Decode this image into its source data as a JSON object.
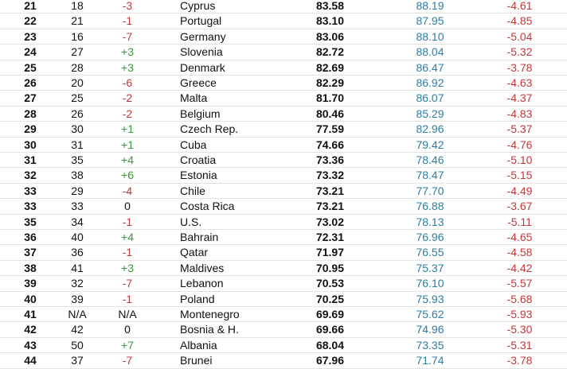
{
  "table": {
    "rows": [
      [
        "21",
        "18",
        "-3",
        "Cyprus",
        "83.58",
        "88.19",
        "-4.61"
      ],
      [
        "22",
        "21",
        "-1",
        "Portugal",
        "83.10",
        "87.95",
        "-4.85"
      ],
      [
        "23",
        "16",
        "-7",
        "Germany",
        "83.06",
        "88.10",
        "-5.04"
      ],
      [
        "24",
        "27",
        "+3",
        "Slovenia",
        "82.72",
        "88.04",
        "-5.32"
      ],
      [
        "25",
        "28",
        "+3",
        "Denmark",
        "82.69",
        "86.47",
        "-3.78"
      ],
      [
        "26",
        "20",
        "-6",
        "Greece",
        "82.29",
        "86.92",
        "-4.63"
      ],
      [
        "27",
        "25",
        "-2",
        "Malta",
        "81.70",
        "86.07",
        "-4.37"
      ],
      [
        "28",
        "26",
        "-2",
        "Belgium",
        "80.46",
        "85.29",
        "-4.83"
      ],
      [
        "29",
        "30",
        "+1",
        "Czech Rep.",
        "77.59",
        "82.96",
        "-5.37"
      ],
      [
        "30",
        "31",
        "+1",
        "Cuba",
        "74.66",
        "79.42",
        "-4.76"
      ],
      [
        "31",
        "35",
        "+4",
        "Croatia",
        "73.36",
        "78.46",
        "-5.10"
      ],
      [
        "32",
        "38",
        "+6",
        "Estonia",
        "73.32",
        "78.47",
        "-5.15"
      ],
      [
        "33",
        "29",
        "-4",
        "Chile",
        "73.21",
        "77.70",
        "-4.49"
      ],
      [
        "33",
        "33",
        "0",
        "Costa Rica",
        "73.21",
        "76.88",
        "-3.67"
      ],
      [
        "35",
        "34",
        "-1",
        "U.S.",
        "73.02",
        "78.13",
        "-5.11"
      ],
      [
        "36",
        "40",
        "+4",
        "Bahrain",
        "72.31",
        "76.96",
        "-4.65"
      ],
      [
        "37",
        "36",
        "-1",
        "Qatar",
        "71.97",
        "76.55",
        "-4.58"
      ],
      [
        "38",
        "41",
        "+3",
        "Maldives",
        "70.95",
        "75.37",
        "-4.42"
      ],
      [
        "39",
        "32",
        "-7",
        "Lebanon",
        "70.53",
        "76.10",
        "-5.57"
      ],
      [
        "40",
        "39",
        "-1",
        "Poland",
        "70.25",
        "75.93",
        "-5.68"
      ],
      [
        "41",
        "N/A",
        "N/A",
        "Montenegro",
        "69.69",
        "75.62",
        "-5.93"
      ],
      [
        "42",
        "42",
        "0",
        "Bosnia & H.",
        "69.66",
        "74.96",
        "-5.30"
      ],
      [
        "43",
        "50",
        "+7",
        "Albania",
        "68.04",
        "73.35",
        "-5.31"
      ],
      [
        "44",
        "37",
        "-7",
        "Brunei",
        "67.96",
        "71.74",
        "-3.78"
      ]
    ]
  }
}
